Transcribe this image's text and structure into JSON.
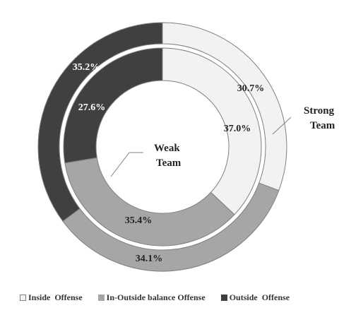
{
  "chart_data": {
    "type": "donut",
    "categories": [
      "Inside  Offense",
      "In-Outside balance Offense",
      "Outside  Offense"
    ],
    "series": [
      {
        "name": "Strong Team",
        "ring": "outer",
        "values": [
          30.7,
          34.1,
          35.2
        ],
        "labels": [
          "30.7%",
          "34.1%",
          "35.2%"
        ]
      },
      {
        "name": "Weak Team",
        "ring": "inner",
        "values": [
          37.0,
          35.4,
          27.6
        ],
        "labels": [
          "37.0%",
          "35.4%",
          "27.6%"
        ]
      }
    ],
    "ring_labels": {
      "outer_line1": "Strong",
      "outer_line2": "Team",
      "inner_line1": "Weak",
      "inner_line2": "Team"
    },
    "legend": {
      "position": "bottom",
      "items": [
        {
          "label": "Inside  Offense",
          "color": "#f2f2f2"
        },
        {
          "label": "In-Outside balance Offense",
          "color": "#a6a6a6"
        },
        {
          "label": "Outside  Offense",
          "color": "#404040"
        }
      ]
    },
    "colors": [
      "#f2f2f2",
      "#a6a6a6",
      "#404040"
    ],
    "start_angle": "12 o'clock",
    "direction": "clockwise"
  }
}
